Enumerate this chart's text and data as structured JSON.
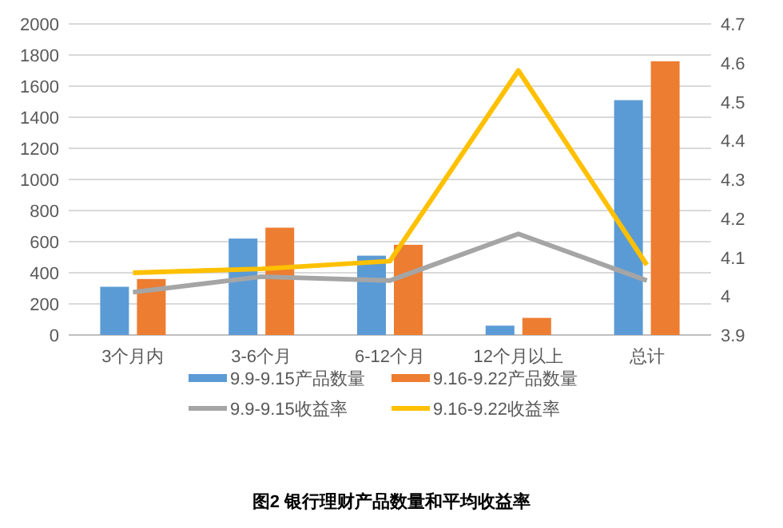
{
  "chart_data": {
    "type": "bar",
    "title": "图2  银行理财产品数量和平均收益率",
    "categories": [
      "3个月内",
      "3-6个月",
      "6-12个月",
      "12个月以上",
      "总计"
    ],
    "series": [
      {
        "name": "9.9-9.15产品数量",
        "color": "#5b9bd5",
        "values": [
          310,
          620,
          510,
          60,
          1510
        ]
      },
      {
        "name": "9.16-9.22产品数量",
        "color": "#ed7d31",
        "values": [
          360,
          690,
          580,
          110,
          1760
        ]
      },
      {
        "name": "9.9-9.15收益率",
        "type": "line",
        "axis": "y2",
        "color": "#a5a5a5",
        "values": [
          4.01,
          4.05,
          4.04,
          4.16,
          4.04
        ]
      },
      {
        "name": "9.16-9.22收益率",
        "type": "line",
        "axis": "y2",
        "color": "#ffc000",
        "values": [
          4.06,
          4.07,
          4.09,
          4.58,
          4.08
        ]
      }
    ],
    "ylim": [
      0,
      2000
    ],
    "yticks": [
      0,
      200,
      400,
      600,
      800,
      1000,
      1200,
      1400,
      1600,
      1800,
      2000
    ],
    "y2lim": [
      3.9,
      4.7
    ],
    "y2ticks": [
      3.9,
      4,
      4.1,
      4.2,
      4.3,
      4.4,
      4.5,
      4.6,
      4.7
    ],
    "grid": "y",
    "legend": "bottom",
    "marker": "none"
  }
}
